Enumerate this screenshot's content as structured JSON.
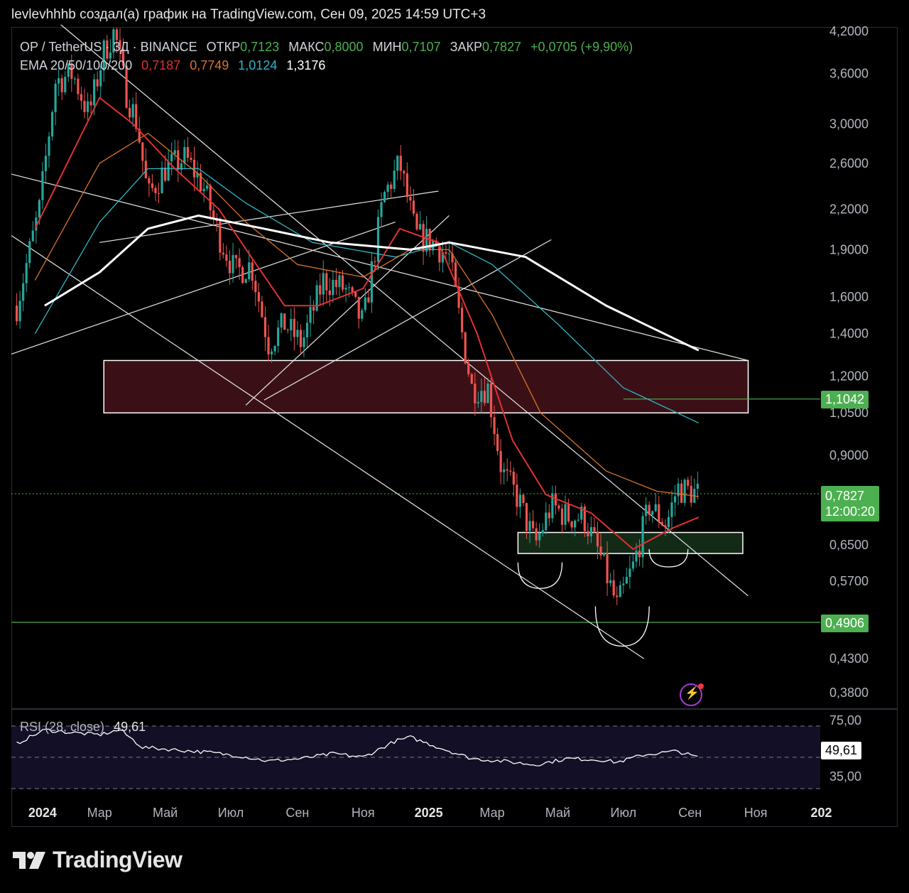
{
  "header": {
    "text": "levlevhhhb создал(а) график на TradingView.com, Сен 09, 2025 14:59 UTC+3"
  },
  "legend": {
    "symbol": "OP / TetherUS · 3Д · BINANCE",
    "open_label": "ОТКР",
    "open": "0,7123",
    "high_label": "МАКС",
    "high": "0,8000",
    "low_label": "МИН",
    "low": "0,7107",
    "close_label": "ЗАКР",
    "close": "0,7827",
    "change": "+0,0705 (+9,90%)",
    "ema_label": "EMA 20/50/100/200",
    "ema20": "0,7187",
    "ema50": "0,7749",
    "ema100": "1,0124",
    "ema200": "1,3176"
  },
  "rsi": {
    "label": "RSI (28, close)",
    "value": "49,61",
    "upper": "75,00",
    "lower": "35,00",
    "badge": "49,61"
  },
  "badges": {
    "level_upper": "1,1042",
    "price": "0,7827",
    "countdown": "12:00:20",
    "level_lower": "0,4906"
  },
  "brand": {
    "name": "TradingView"
  },
  "colors": {
    "up": "#26a69a",
    "down": "#ef5350",
    "ema20": "#e03131",
    "ema50": "#d9722b",
    "ema100": "#2fb7c6",
    "ema200": "#ffffff",
    "green_level": "#4caf50",
    "resistance_zone": "#3a1016",
    "support_zone": "#132a17",
    "rsi_line": "#ffffff"
  },
  "chart_data": {
    "type": "candlestick",
    "title": "OP / TetherUS · 3Д · BINANCE",
    "y_scale": "log",
    "y_ticks": [
      "4,2000",
      "3,6000",
      "3,0000",
      "2,6000",
      "2,2000",
      "1,9000",
      "1,6000",
      "1,4000",
      "1,2000",
      "1,0500",
      "0,9000",
      "0,6500",
      "0,5700",
      "0,4300",
      "0,3800"
    ],
    "x_ticks": [
      "2024",
      "Мар",
      "Май",
      "Июл",
      "Сен",
      "Ноя",
      "2025",
      "Мар",
      "Май",
      "Июл",
      "Сен",
      "Ноя",
      "202"
    ],
    "close_path": [
      {
        "t": "2023-12-15",
        "p": 1.55
      },
      {
        "t": "2024-01-05",
        "p": 2.2
      },
      {
        "t": "2024-01-20",
        "p": 3.5
      },
      {
        "t": "2024-02-05",
        "p": 3.6
      },
      {
        "t": "2024-02-20",
        "p": 3.1
      },
      {
        "t": "2024-03-05",
        "p": 3.9
      },
      {
        "t": "2024-03-15",
        "p": 4.2
      },
      {
        "t": "2024-03-25",
        "p": 3.4
      },
      {
        "t": "2024-04-05",
        "p": 3.0
      },
      {
        "t": "2024-04-15",
        "p": 2.3
      },
      {
        "t": "2024-05-01",
        "p": 2.55
      },
      {
        "t": "2024-05-20",
        "p": 2.65
      },
      {
        "t": "2024-06-05",
        "p": 2.4
      },
      {
        "t": "2024-06-20",
        "p": 2.0
      },
      {
        "t": "2024-07-05",
        "p": 1.75
      },
      {
        "t": "2024-07-20",
        "p": 1.8
      },
      {
        "t": "2024-08-05",
        "p": 1.35
      },
      {
        "t": "2024-08-20",
        "p": 1.45
      },
      {
        "t": "2024-09-05",
        "p": 1.35
      },
      {
        "t": "2024-09-25",
        "p": 1.7
      },
      {
        "t": "2024-10-15",
        "p": 1.65
      },
      {
        "t": "2024-11-01",
        "p": 1.45
      },
      {
        "t": "2024-11-20",
        "p": 2.3
      },
      {
        "t": "2024-12-05",
        "p": 2.6
      },
      {
        "t": "2024-12-20",
        "p": 2.0
      },
      {
        "t": "2025-01-05",
        "p": 1.95
      },
      {
        "t": "2025-01-20",
        "p": 1.85
      },
      {
        "t": "2025-02-01",
        "p": 1.4
      },
      {
        "t": "2025-02-10",
        "p": 1.15
      },
      {
        "t": "2025-02-25",
        "p": 1.15
      },
      {
        "t": "2025-03-10",
        "p": 0.85
      },
      {
        "t": "2025-03-25",
        "p": 0.77
      },
      {
        "t": "2025-04-10",
        "p": 0.65
      },
      {
        "t": "2025-04-25",
        "p": 0.75
      },
      {
        "t": "2025-05-10",
        "p": 0.72
      },
      {
        "t": "2025-05-25",
        "p": 0.72
      },
      {
        "t": "2025-06-10",
        "p": 0.62
      },
      {
        "t": "2025-06-25",
        "p": 0.52
      },
      {
        "t": "2025-07-10",
        "p": 0.6
      },
      {
        "t": "2025-07-25",
        "p": 0.75
      },
      {
        "t": "2025-08-10",
        "p": 0.7
      },
      {
        "t": "2025-08-20",
        "p": 0.8
      },
      {
        "t": "2025-09-09",
        "p": 0.7827
      }
    ],
    "ema20": [
      {
        "t": "2024-01-01",
        "p": 2.05
      },
      {
        "t": "2024-03-01",
        "p": 3.3
      },
      {
        "t": "2024-04-01",
        "p": 3.0
      },
      {
        "t": "2024-05-10",
        "p": 2.55
      },
      {
        "t": "2024-06-20",
        "p": 2.2
      },
      {
        "t": "2024-07-20",
        "p": 1.85
      },
      {
        "t": "2024-08-20",
        "p": 1.55
      },
      {
        "t": "2024-09-20",
        "p": 1.55
      },
      {
        "t": "2024-11-01",
        "p": 1.65
      },
      {
        "t": "2024-12-05",
        "p": 2.05
      },
      {
        "t": "2025-01-10",
        "p": 1.95
      },
      {
        "t": "2025-02-15",
        "p": 1.4
      },
      {
        "t": "2025-03-20",
        "p": 0.95
      },
      {
        "t": "2025-04-20",
        "p": 0.78
      },
      {
        "t": "2025-06-01",
        "p": 0.73
      },
      {
        "t": "2025-07-10",
        "p": 0.64
      },
      {
        "t": "2025-08-15",
        "p": 0.69
      },
      {
        "t": "2025-09-09",
        "p": 0.7187
      }
    ],
    "ema50": [
      {
        "t": "2024-01-01",
        "p": 1.7
      },
      {
        "t": "2024-03-01",
        "p": 2.6
      },
      {
        "t": "2024-04-15",
        "p": 2.9
      },
      {
        "t": "2024-06-01",
        "p": 2.5
      },
      {
        "t": "2024-07-15",
        "p": 2.1
      },
      {
        "t": "2024-09-01",
        "p": 1.8
      },
      {
        "t": "2024-11-01",
        "p": 1.72
      },
      {
        "t": "2024-12-15",
        "p": 1.9
      },
      {
        "t": "2025-01-20",
        "p": 1.9
      },
      {
        "t": "2025-03-01",
        "p": 1.5
      },
      {
        "t": "2025-04-15",
        "p": 1.05
      },
      {
        "t": "2025-06-15",
        "p": 0.85
      },
      {
        "t": "2025-08-01",
        "p": 0.79
      },
      {
        "t": "2025-09-09",
        "p": 0.7749
      }
    ],
    "ema100": [
      {
        "t": "2024-01-01",
        "p": 1.4
      },
      {
        "t": "2024-03-01",
        "p": 2.1
      },
      {
        "t": "2024-04-15",
        "p": 2.55
      },
      {
        "t": "2024-06-01",
        "p": 2.55
      },
      {
        "t": "2024-07-15",
        "p": 2.25
      },
      {
        "t": "2024-09-15",
        "p": 1.95
      },
      {
        "t": "2024-12-01",
        "p": 1.85
      },
      {
        "t": "2025-01-20",
        "p": 1.95
      },
      {
        "t": "2025-03-01",
        "p": 1.8
      },
      {
        "t": "2025-05-01",
        "p": 1.45
      },
      {
        "t": "2025-07-01",
        "p": 1.15
      },
      {
        "t": "2025-09-09",
        "p": 1.0124
      }
    ],
    "ema200": [
      {
        "t": "2024-01-10",
        "p": 1.55
      },
      {
        "t": "2024-03-01",
        "p": 1.75
      },
      {
        "t": "2024-04-15",
        "p": 2.05
      },
      {
        "t": "2024-06-01",
        "p": 2.15
      },
      {
        "t": "2024-08-01",
        "p": 2.05
      },
      {
        "t": "2024-10-01",
        "p": 1.95
      },
      {
        "t": "2024-12-15",
        "p": 1.9
      },
      {
        "t": "2025-01-20",
        "p": 1.95
      },
      {
        "t": "2025-04-01",
        "p": 1.85
      },
      {
        "t": "2025-06-15",
        "p": 1.55
      },
      {
        "t": "2025-09-09",
        "p": 1.3176
      }
    ],
    "rsi": [
      {
        "t": "2023-12-15",
        "v": 61
      },
      {
        "t": "2024-01-10",
        "v": 72
      },
      {
        "t": "2024-02-01",
        "v": 70
      },
      {
        "t": "2024-03-01",
        "v": 68
      },
      {
        "t": "2024-03-20",
        "v": 72
      },
      {
        "t": "2024-04-10",
        "v": 58
      },
      {
        "t": "2024-05-10",
        "v": 56
      },
      {
        "t": "2024-06-10",
        "v": 54
      },
      {
        "t": "2024-07-10",
        "v": 51
      },
      {
        "t": "2024-08-05",
        "v": 47
      },
      {
        "t": "2024-09-05",
        "v": 49
      },
      {
        "t": "2024-10-05",
        "v": 53
      },
      {
        "t": "2024-11-01",
        "v": 50
      },
      {
        "t": "2024-12-01",
        "v": 63
      },
      {
        "t": "2024-12-15",
        "v": 66
      },
      {
        "t": "2025-01-10",
        "v": 58
      },
      {
        "t": "2025-02-10",
        "v": 49
      },
      {
        "t": "2025-03-10",
        "v": 47
      },
      {
        "t": "2025-04-10",
        "v": 44
      },
      {
        "t": "2025-05-10",
        "v": 49
      },
      {
        "t": "2025-06-10",
        "v": 48
      },
      {
        "t": "2025-06-25",
        "v": 46
      },
      {
        "t": "2025-07-20",
        "v": 52
      },
      {
        "t": "2025-08-20",
        "v": 55
      },
      {
        "t": "2025-09-09",
        "v": 49.61
      }
    ],
    "horizontal_lines": [
      1.1042,
      0.4906
    ],
    "zones": [
      {
        "from": "2024-03-05",
        "to": "2025-10-25",
        "low": 1.05,
        "high": 1.27
      },
      {
        "from": "2025-03-25",
        "to": "2025-10-20",
        "low": 0.63,
        "high": 0.68
      }
    ]
  }
}
